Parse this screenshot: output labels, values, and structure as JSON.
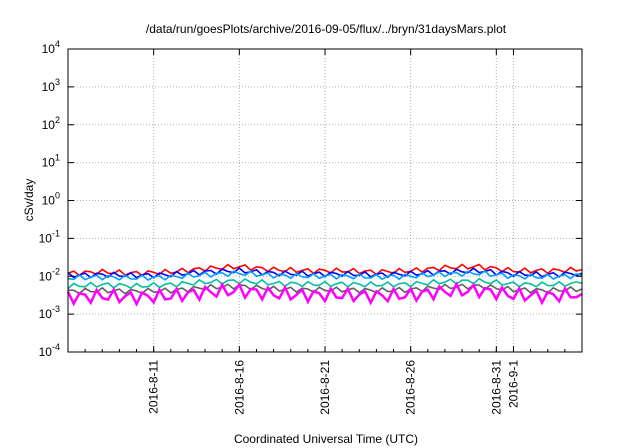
{
  "chart_data": {
    "type": "line",
    "title": "/data/run/goesPlots/archive/2016-09-05/flux/../bryn/31daysMars.plot",
    "xlabel": "Coordinated Universal Time (UTC)",
    "ylabel": "cSv/day",
    "yscale": "log",
    "ylim": [
      0.0001,
      10000
    ],
    "xlim": [
      "2016-08-06",
      "2016-09-05"
    ],
    "grid": true,
    "y_ticks": [
      {
        "base": "10",
        "exp": "-4"
      },
      {
        "base": "10",
        "exp": "-3"
      },
      {
        "base": "10",
        "exp": "-2"
      },
      {
        "base": "10",
        "exp": "-1"
      },
      {
        "base": "10",
        "exp": "0"
      },
      {
        "base": "10",
        "exp": "1"
      },
      {
        "base": "10",
        "exp": "2"
      },
      {
        "base": "10",
        "exp": "3"
      },
      {
        "base": "10",
        "exp": "4"
      }
    ],
    "x_ticks": [
      "2016-8-11",
      "2016-8-16",
      "2016-8-21",
      "2016-8-26",
      "2016-8-31",
      "2016-9-1"
    ],
    "x": [
      "2016-08-06",
      "2016-08-08",
      "2016-08-10",
      "2016-08-12",
      "2016-08-14",
      "2016-08-16",
      "2016-08-18",
      "2016-08-20",
      "2016-08-22",
      "2016-08-24",
      "2016-08-26",
      "2016-08-28",
      "2016-08-30",
      "2016-09-01",
      "2016-09-03",
      "2016-09-05"
    ],
    "series": [
      {
        "color": "#ff0000",
        "values": [
          0.012,
          0.013,
          0.012,
          0.013,
          0.016,
          0.018,
          0.015,
          0.014,
          0.014,
          0.013,
          0.014,
          0.017,
          0.018,
          0.014,
          0.014,
          0.015
        ]
      },
      {
        "color": "#0000ff",
        "values": [
          0.0105,
          0.011,
          0.0105,
          0.011,
          0.013,
          0.014,
          0.012,
          0.0115,
          0.0115,
          0.011,
          0.0115,
          0.013,
          0.014,
          0.0115,
          0.011,
          0.012
        ]
      },
      {
        "color": "#00a0ff",
        "values": [
          0.009,
          0.0095,
          0.009,
          0.0095,
          0.011,
          0.012,
          0.0105,
          0.01,
          0.01,
          0.0095,
          0.01,
          0.0115,
          0.012,
          0.01,
          0.0095,
          0.0105
        ]
      },
      {
        "color": "#00c0a0",
        "values": [
          0.0055,
          0.006,
          0.0055,
          0.006,
          0.007,
          0.0075,
          0.0065,
          0.0062,
          0.0062,
          0.006,
          0.0062,
          0.0072,
          0.0075,
          0.0062,
          0.006,
          0.0065
        ]
      },
      {
        "color": "#606060",
        "values": [
          0.004,
          0.0042,
          0.004,
          0.0042,
          0.005,
          0.0055,
          0.0046,
          0.0044,
          0.0044,
          0.0042,
          0.0044,
          0.0052,
          0.0055,
          0.0044,
          0.0042,
          0.0046
        ]
      },
      {
        "color": "#ff00ff",
        "values": [
          0.0028,
          0.003,
          0.0028,
          0.003,
          0.0038,
          0.0042,
          0.0034,
          0.0032,
          0.0032,
          0.003,
          0.0032,
          0.004,
          0.0042,
          0.0032,
          0.003,
          0.0034
        ]
      }
    ]
  }
}
